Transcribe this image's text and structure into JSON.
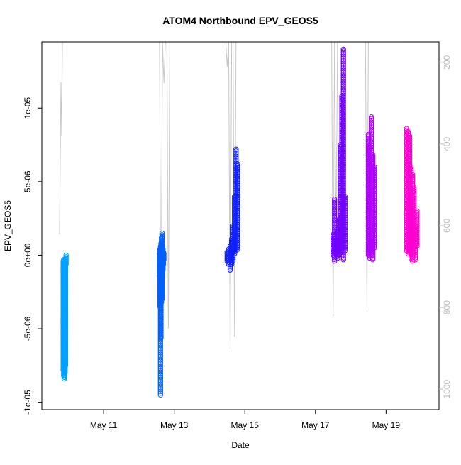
{
  "chart_data": {
    "type": "scatter",
    "title": "ATOM4 Northbound EPV_GEOS5",
    "xlabel": "Date",
    "ylabel": "EPV_GEOS5",
    "xlim": [
      "2018-05-09T06:00",
      "2018-05-20T12:00"
    ],
    "ylim": [
      -1.05e-05,
      1.45e-05
    ],
    "x_ticks": [
      {
        "value": "2018-05-11",
        "label": "May 11"
      },
      {
        "value": "2018-05-13",
        "label": "May 13"
      },
      {
        "value": "2018-05-15",
        "label": "May 15"
      },
      {
        "value": "2018-05-17",
        "label": "May 17"
      },
      {
        "value": "2018-05-19",
        "label": "May 19"
      }
    ],
    "y_ticks": [
      {
        "value": -1e-05,
        "label": "-1e-05"
      },
      {
        "value": -5e-06,
        "label": "-5e-06"
      },
      {
        "value": 0,
        "label": "0e+00"
      },
      {
        "value": 5e-06,
        "label": "5e-06"
      },
      {
        "value": 1e-05,
        "label": "1e-05"
      }
    ],
    "secondary_axis": {
      "side": "right",
      "inverted": true,
      "color": "#bebebe",
      "range": [
        150,
        1050
      ],
      "ticks": [
        {
          "value": 200,
          "label": "200"
        },
        {
          "value": 400,
          "label": "400"
        },
        {
          "value": 600,
          "label": "600"
        },
        {
          "value": 800,
          "label": "800"
        },
        {
          "value": 1000,
          "label": "1000"
        }
      ]
    },
    "grid": false,
    "legend": "none",
    "series": [
      {
        "color": "#00a0ff",
        "x": [
          "2018-05-09T20:30",
          "2018-05-09T20:50",
          "2018-05-09T21:10",
          "2018-05-09T21:30",
          "2018-05-09T21:50",
          "2018-05-09T22:10",
          "2018-05-09T22:30"
        ],
        "y_min": [
          -7.8e-06,
          -8.2e-06,
          -8.4e-06,
          -8.3e-06,
          -8e-06,
          -7.5e-06,
          -6e-07
        ],
        "y_max": [
          -4e-07,
          -3e-07,
          -5e-07,
          -6e-07,
          -4e-07,
          -2e-07,
          0
        ]
      },
      {
        "color": "#0060ff",
        "x": [
          "2018-05-12T14:00",
          "2018-05-12T14:20",
          "2018-05-12T14:40",
          "2018-05-12T15:00",
          "2018-05-12T15:20",
          "2018-05-12T15:40",
          "2018-05-12T16:00",
          "2018-05-12T16:20",
          "2018-05-12T16:40",
          "2018-05-12T17:00"
        ],
        "y_min": [
          -1.4e-06,
          -3.5e-06,
          -9.5e-06,
          -5.6e-06,
          -3.2e-06,
          -3e-06,
          -1.5e-06,
          -1e-06,
          -6e-07,
          -3e-07
        ],
        "y_max": [
          2e-07,
          4e-07,
          6e-07,
          8e-07,
          1.2e-06,
          1.5e-06,
          6e-07,
          4e-07,
          2e-07,
          1e-07
        ]
      },
      {
        "color": "#1020ff",
        "x": [
          "2018-05-14T12:00",
          "2018-05-14T13:00",
          "2018-05-14T14:00",
          "2018-05-14T15:00",
          "2018-05-14T16:00",
          "2018-05-14T17:00",
          "2018-05-14T18:00",
          "2018-05-14T19:00"
        ],
        "y_min": [
          -4e-07,
          -6e-07,
          -1e-06,
          -6e-07,
          -4e-07,
          1e-07,
          3e-07,
          4e-07
        ],
        "y_max": [
          2e-07,
          4e-07,
          6e-07,
          1.1e-06,
          2e-06,
          4e-06,
          7.2e-06,
          6.2e-06
        ]
      },
      {
        "color": "#7000ff",
        "x": [
          "2018-05-17T12:00",
          "2018-05-17T13:00",
          "2018-05-17T14:00",
          "2018-05-17T15:00",
          "2018-05-17T16:00",
          "2018-05-17T17:00",
          "2018-05-17T18:00",
          "2018-05-17T19:00",
          "2018-05-17T20:00"
        ],
        "y_min": [
          0,
          -4e-07,
          1e-07,
          -2e-07,
          0,
          2e-07,
          3e-07,
          -3e-07,
          3e-07
        ],
        "y_max": [
          1.4e-06,
          3.8e-06,
          1e-06,
          1.6e-06,
          2.5e-06,
          7.5e-06,
          1.08e-05,
          1.4e-05,
          4e-06
        ]
      },
      {
        "color": "#b000ff",
        "x": [
          "2018-05-18T12:00",
          "2018-05-18T13:00",
          "2018-05-18T14:00",
          "2018-05-18T15:00",
          "2018-05-18T16:00"
        ],
        "y_min": [
          0,
          -2e-07,
          1e-07,
          -3e-07,
          5e-07
        ],
        "y_max": [
          8.2e-06,
          7.5e-06,
          9.4e-06,
          6.8e-06,
          6e-06
        ]
      },
      {
        "color": "#ff00d0",
        "x": [
          "2018-05-19T14:00",
          "2018-05-19T15:00",
          "2018-05-19T16:00",
          "2018-05-19T17:00",
          "2018-05-19T18:00",
          "2018-05-19T19:00",
          "2018-05-19T20:00",
          "2018-05-19T21:00"
        ],
        "y_min": [
          3e-07,
          1e-07,
          2e-07,
          -2e-07,
          -4e-07,
          2e-07,
          -3e-07,
          6e-07
        ],
        "y_max": [
          8.6e-06,
          8.4e-06,
          8.1e-06,
          6e-06,
          5.5e-06,
          4.6e-06,
          2e-06,
          3e-06
        ]
      }
    ],
    "secondary_series": {
      "color": "#c8c8c8",
      "x": [
        "2018-05-09T18:00",
        "2018-05-09T18:30",
        "2018-05-09T19:00",
        "2018-05-09T19:30",
        "2018-05-09T20:00",
        "2018-05-09T20:30",
        "2018-05-09T21:00",
        "2018-05-09T21:30",
        "2018-05-09T22:00",
        "2018-05-09T22:30",
        "2018-05-09T23:00",
        "2018-05-12T12:00",
        "2018-05-12T13:00",
        "2018-05-12T14:00",
        "2018-05-12T15:00",
        "2018-05-12T16:00",
        "2018-05-12T17:00",
        "2018-05-12T18:00",
        "2018-05-12T19:00",
        "2018-05-12T20:00",
        "2018-05-12T21:00",
        "2018-05-12T22:00",
        "2018-05-14T11:00",
        "2018-05-14T12:00",
        "2018-05-14T13:00",
        "2018-05-14T14:00",
        "2018-05-14T15:00",
        "2018-05-14T16:00",
        "2018-05-14T17:00",
        "2018-05-14T18:00",
        "2018-05-14T19:00",
        "2018-05-14T20:00",
        "2018-05-14T21:00",
        "2018-05-17T11:00",
        "2018-05-17T12:00",
        "2018-05-17T13:00",
        "2018-05-17T14:00",
        "2018-05-17T15:00",
        "2018-05-17T16:00",
        "2018-05-17T17:00",
        "2018-05-17T18:00",
        "2018-05-17T19:00",
        "2018-05-17T20:00",
        "2018-05-17T21:00",
        "2018-05-18T10:00",
        "2018-05-18T11:00",
        "2018-05-18T12:00",
        "2018-05-18T13:00",
        "2018-05-18T14:00",
        "2018-05-18T15:00",
        "2018-05-18T16:00",
        "2018-05-18T17:00",
        "2018-05-19T12:00",
        "2018-05-19T13:00",
        "2018-05-19T14:00",
        "2018-05-19T15:00",
        "2018-05-19T16:00",
        "2018-05-19T17:00",
        "2018-05-19T18:00",
        "2018-05-19T19:00",
        "2018-05-19T20:00",
        "2018-05-19T21:00",
        "2018-05-19T22:00"
      ],
      "y": [
        620,
        450,
        250,
        380,
        150,
        150,
        150,
        150,
        150,
        150,
        150,
        150,
        150,
        150,
        900,
        150,
        250,
        150,
        150,
        850,
        150,
        150,
        150,
        210,
        150,
        900,
        150,
        150,
        870,
        150,
        150,
        150,
        150,
        150,
        820,
        150,
        650,
        150,
        150,
        150,
        150,
        150,
        150,
        150,
        150,
        800,
        150,
        150,
        150,
        150,
        150,
        150,
        150,
        150,
        150,
        150,
        150,
        150,
        150,
        150,
        150,
        150,
        150
      ]
    }
  }
}
